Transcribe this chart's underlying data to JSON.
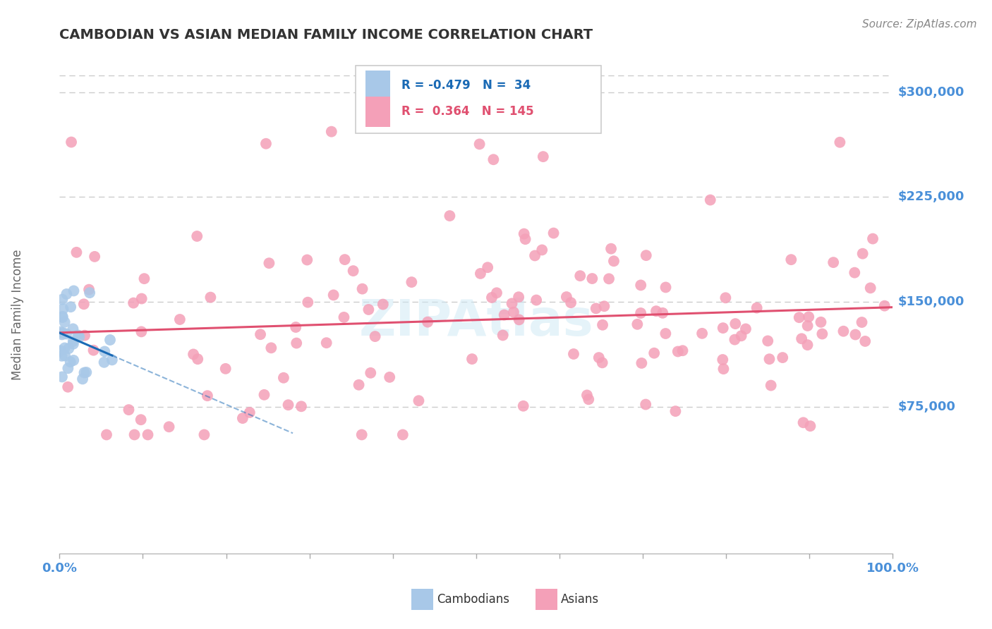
{
  "title": "CAMBODIAN VS ASIAN MEDIAN FAMILY INCOME CORRELATION CHART",
  "source": "Source: ZipAtlas.com",
  "ylabel": "Median Family Income",
  "y_ticks": [
    75000,
    150000,
    225000,
    300000
  ],
  "y_tick_labels": [
    "$75,000",
    "$150,000",
    "$225,000",
    "$300,000"
  ],
  "y_top_grid": 312000,
  "y_max": 330000,
  "y_min": -30000,
  "x_min": 0.0,
  "x_max": 100.0,
  "cambodian_color": "#a8c8e8",
  "asian_color": "#f4a0b8",
  "cambodian_line_color": "#1a6ab5",
  "asian_line_color": "#e05070",
  "R_cambodian": -0.479,
  "N_cambodian": 34,
  "R_asian": 0.364,
  "N_asian": 145,
  "legend_label_cambodian": "Cambodians",
  "legend_label_asian": "Asians",
  "title_color": "#333333",
  "axis_label_color": "#4a90d9",
  "watermark_text": "ZIPAtlas",
  "watermark_color": "#cde8f5",
  "grid_color": "#cccccc",
  "source_color": "#888888"
}
